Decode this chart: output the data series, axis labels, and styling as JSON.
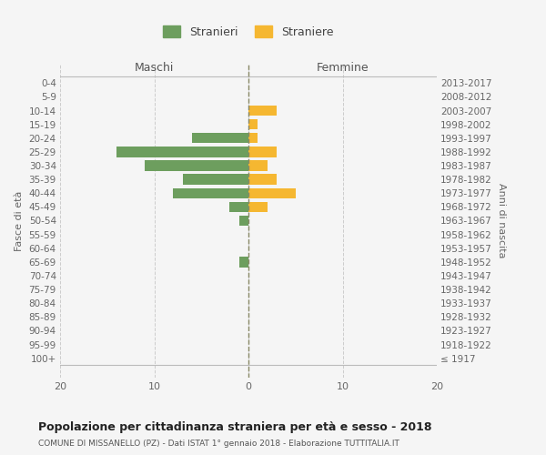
{
  "age_groups": [
    "0-4",
    "5-9",
    "10-14",
    "15-19",
    "20-24",
    "25-29",
    "30-34",
    "35-39",
    "40-44",
    "45-49",
    "50-54",
    "55-59",
    "60-64",
    "65-69",
    "70-74",
    "75-79",
    "80-84",
    "85-89",
    "90-94",
    "95-99",
    "100+"
  ],
  "birth_years": [
    "2013-2017",
    "2008-2012",
    "2003-2007",
    "1998-2002",
    "1993-1997",
    "1988-1992",
    "1983-1987",
    "1978-1982",
    "1973-1977",
    "1968-1972",
    "1963-1967",
    "1958-1962",
    "1953-1957",
    "1948-1952",
    "1943-1947",
    "1938-1942",
    "1933-1937",
    "1928-1932",
    "1923-1927",
    "1918-1922",
    "≤ 1917"
  ],
  "males": [
    0,
    0,
    0,
    0,
    6,
    14,
    11,
    7,
    8,
    2,
    1,
    0,
    0,
    1,
    0,
    0,
    0,
    0,
    0,
    0,
    0
  ],
  "females": [
    0,
    0,
    3,
    1,
    1,
    3,
    2,
    3,
    5,
    2,
    0,
    0,
    0,
    0,
    0,
    0,
    0,
    0,
    0,
    0,
    0
  ],
  "male_color": "#6d9e5e",
  "female_color": "#f5b731",
  "grid_color": "#cccccc",
  "title": "Popolazione per cittadinanza straniera per età e sesso - 2018",
  "subtitle": "COMUNE DI MISSANELLO (PZ) - Dati ISTAT 1° gennaio 2018 - Elaborazione TUTTITALIA.IT",
  "ylabel_left": "Fasce di età",
  "ylabel_right": "Anni di nascita",
  "xlabel_left": "Maschi",
  "xlabel_right": "Femmine",
  "legend_male": "Stranieri",
  "legend_female": "Straniere",
  "xlim": [
    -20,
    20
  ],
  "xticks": [
    -20,
    -10,
    0,
    10,
    20
  ],
  "xticklabels": [
    "20",
    "10",
    "0",
    "10",
    "20"
  ],
  "bg_color": "#f5f5f5",
  "bar_height": 0.75
}
